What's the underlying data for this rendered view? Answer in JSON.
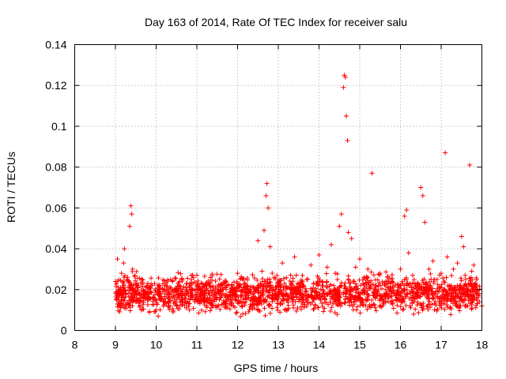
{
  "chart_data": {
    "type": "scatter",
    "title": "Day 163 of 2014, Rate Of TEC Index for receiver salu",
    "xlabel": "GPS time / hours",
    "ylabel": "ROTI / TECUs",
    "xlim": [
      8,
      18
    ],
    "ylim": [
      0,
      0.14
    ],
    "x_ticks": [
      8,
      9,
      10,
      11,
      12,
      13,
      14,
      15,
      16,
      17,
      18
    ],
    "x_tick_labels": [
      "8",
      "9",
      "10",
      "11",
      "12",
      "13",
      "14",
      "15",
      "16",
      "17",
      "18"
    ],
    "y_ticks": [
      0,
      0.02,
      0.04,
      0.06,
      0.08,
      0.1,
      0.12,
      0.14
    ],
    "y_tick_labels": [
      "0",
      "0.02",
      "0.04",
      "0.06",
      "0.08",
      "0.1",
      "0.12",
      "0.14"
    ],
    "grid": true,
    "marker": "plus",
    "color": "#ff0000",
    "series": [
      {
        "name": "ROTI",
        "x": [
          9.0,
          9.05,
          9.1,
          9.15,
          9.2,
          9.22,
          9.25,
          9.3,
          9.35,
          9.38,
          9.4,
          9.42,
          9.45,
          9.5,
          9.55,
          9.6,
          9.7,
          9.8,
          9.9,
          10.0,
          10.05,
          10.1,
          10.2,
          10.3,
          10.4,
          10.5,
          10.6,
          10.7,
          10.8,
          10.9,
          11.0,
          11.1,
          11.2,
          11.3,
          11.4,
          11.5,
          11.6,
          11.7,
          11.8,
          11.9,
          12.0,
          12.1,
          12.2,
          12.3,
          12.4,
          12.5,
          12.6,
          12.65,
          12.7,
          12.72,
          12.75,
          12.8,
          12.85,
          12.9,
          13.0,
          13.1,
          13.2,
          13.3,
          13.4,
          13.5,
          13.6,
          13.7,
          13.8,
          13.9,
          14.0,
          14.1,
          14.2,
          14.3,
          14.4,
          14.5,
          14.55,
          14.6,
          14.62,
          14.65,
          14.67,
          14.7,
          14.72,
          14.8,
          14.9,
          15.0,
          15.1,
          15.2,
          15.3,
          15.4,
          15.5,
          15.6,
          15.7,
          15.8,
          15.9,
          16.0,
          16.1,
          16.15,
          16.2,
          16.3,
          16.4,
          16.5,
          16.55,
          16.6,
          16.7,
          16.8,
          16.9,
          17.0,
          17.1,
          17.15,
          17.2,
          17.3,
          17.4,
          17.5,
          17.55,
          17.6,
          17.7,
          17.75,
          17.8,
          17.9,
          18.0
        ],
        "y": [
          0.024,
          0.035,
          0.02,
          0.028,
          0.033,
          0.04,
          0.018,
          0.026,
          0.051,
          0.061,
          0.057,
          0.03,
          0.016,
          0.014,
          0.022,
          0.012,
          0.018,
          0.015,
          0.022,
          0.01,
          0.007,
          0.016,
          0.02,
          0.014,
          0.024,
          0.012,
          0.018,
          0.016,
          0.013,
          0.02,
          0.027,
          0.014,
          0.018,
          0.022,
          0.012,
          0.016,
          0.019,
          0.013,
          0.017,
          0.012,
          0.028,
          0.017,
          0.014,
          0.02,
          0.015,
          0.044,
          0.029,
          0.049,
          0.066,
          0.072,
          0.06,
          0.041,
          0.028,
          0.018,
          0.022,
          0.033,
          0.015,
          0.027,
          0.036,
          0.02,
          0.014,
          0.025,
          0.032,
          0.017,
          0.037,
          0.022,
          0.031,
          0.042,
          0.028,
          0.051,
          0.057,
          0.119,
          0.125,
          0.124,
          0.105,
          0.093,
          0.048,
          0.045,
          0.031,
          0.035,
          0.026,
          0.03,
          0.077,
          0.022,
          0.028,
          0.018,
          0.02,
          0.024,
          0.017,
          0.03,
          0.056,
          0.059,
          0.038,
          0.027,
          0.022,
          0.07,
          0.066,
          0.053,
          0.03,
          0.034,
          0.025,
          0.028,
          0.087,
          0.036,
          0.022,
          0.03,
          0.033,
          0.046,
          0.041,
          0.025,
          0.081,
          0.029,
          0.032,
          0.018,
          0.012
        ]
      }
    ],
    "background_band": {
      "x_range": [
        9.0,
        17.95
      ],
      "y_range": [
        0.006,
        0.03
      ],
      "density_per_hour": 220
    }
  }
}
